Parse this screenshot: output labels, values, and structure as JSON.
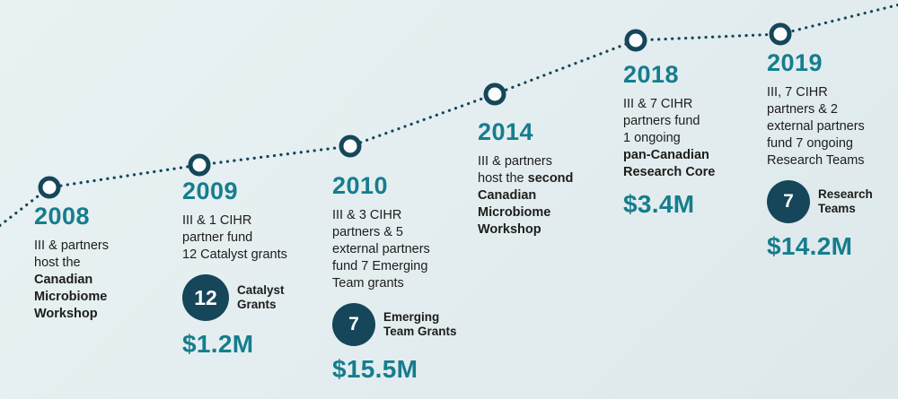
{
  "colors": {
    "background": "#e3edef",
    "bgLight": "#e9f2f3",
    "teal": "#157d8e",
    "navy": "#15465a",
    "text": "#1d1d1b",
    "badgeText": "#ffffff"
  },
  "milestones": [
    {
      "year": "2008",
      "description": [
        [
          {
            "t": "III & partners",
            "b": false
          }
        ],
        [
          {
            "t": "host the",
            "b": false
          }
        ],
        [
          {
            "t": "Canadian",
            "b": true
          }
        ],
        [
          {
            "t": "Microbiome",
            "b": true
          }
        ],
        [
          {
            "t": "Workshop",
            "b": true
          }
        ]
      ]
    },
    {
      "year": "2009",
      "description": [
        [
          {
            "t": "III & 1 CIHR",
            "b": false
          }
        ],
        [
          {
            "t": "partner fund",
            "b": false
          }
        ],
        [
          {
            "t": "12 Catalyst grants",
            "b": false
          }
        ]
      ],
      "badge": {
        "number": "12",
        "label_lines": [
          "Catalyst",
          "Grants"
        ]
      },
      "amount": "$1.2M"
    },
    {
      "year": "2010",
      "description": [
        [
          {
            "t": "III & 3 CIHR",
            "b": false
          }
        ],
        [
          {
            "t": "partners & 5",
            "b": false
          }
        ],
        [
          {
            "t": "external partners",
            "b": false
          }
        ],
        [
          {
            "t": "fund 7 Emerging",
            "b": false
          }
        ],
        [
          {
            "t": "Team grants",
            "b": false
          }
        ]
      ],
      "badge": {
        "number": "7",
        "label_lines": [
          "Emerging",
          "Team Grants"
        ]
      },
      "amount": "$15.5M"
    },
    {
      "year": "2014",
      "description": [
        [
          {
            "t": "III & partners",
            "b": false
          }
        ],
        [
          {
            "t": "host the ",
            "b": false
          },
          {
            "t": "second",
            "b": true
          }
        ],
        [
          {
            "t": "Canadian",
            "b": true
          }
        ],
        [
          {
            "t": "Microbiome",
            "b": true
          }
        ],
        [
          {
            "t": "Workshop",
            "b": true
          }
        ]
      ]
    },
    {
      "year": "2018",
      "description": [
        [
          {
            "t": "III & 7 CIHR",
            "b": false
          }
        ],
        [
          {
            "t": "partners fund",
            "b": false
          }
        ],
        [
          {
            "t": "1 ongoing",
            "b": false
          }
        ],
        [
          {
            "t": "pan-Canadian",
            "b": true
          }
        ],
        [
          {
            "t": "Research Core",
            "b": true
          }
        ]
      ],
      "amount": "$3.4M"
    },
    {
      "year": "2019",
      "description": [
        [
          {
            "t": "III, 7 CIHR",
            "b": false
          }
        ],
        [
          {
            "t": "partners & 2",
            "b": false
          }
        ],
        [
          {
            "t": "external partners",
            "b": false
          }
        ],
        [
          {
            "t": "fund 7 ongoing",
            "b": false
          }
        ],
        [
          {
            "t": "Research Teams",
            "b": false
          }
        ]
      ],
      "badge": {
        "number": "7",
        "label_lines": [
          "Research",
          "Teams"
        ]
      },
      "amount": "$14.2M"
    }
  ]
}
